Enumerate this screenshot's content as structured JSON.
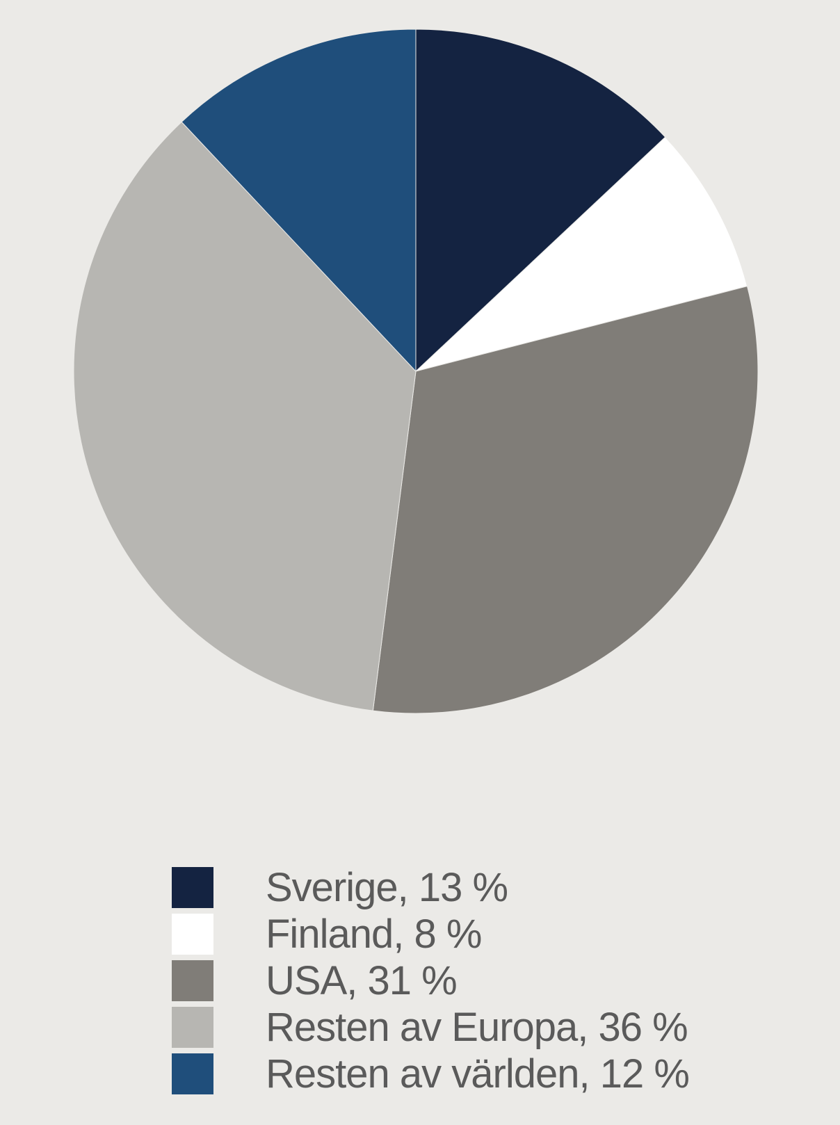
{
  "chart_data": {
    "type": "pie",
    "title": "",
    "start_angle": "top, clockwise",
    "legend_placement": "bottom",
    "slices": [
      {
        "name": "Sverige",
        "value": 13,
        "label": "Sverige, 13 %",
        "color": "#142341"
      },
      {
        "name": "Finland",
        "value": 8,
        "label": "Finland, 8 %",
        "color": "#ffffff"
      },
      {
        "name": "USA",
        "value": 31,
        "label": "USA, 31 %",
        "color": "#807d78"
      },
      {
        "name": "Resten av Europa",
        "value": 36,
        "label": "Resten av Europa, 36 %",
        "color": "#b7b6b2"
      },
      {
        "name": "Resten av världen",
        "value": 12,
        "label": "Resten av världen, 12 %",
        "color": "#1f4e7b"
      }
    ]
  }
}
